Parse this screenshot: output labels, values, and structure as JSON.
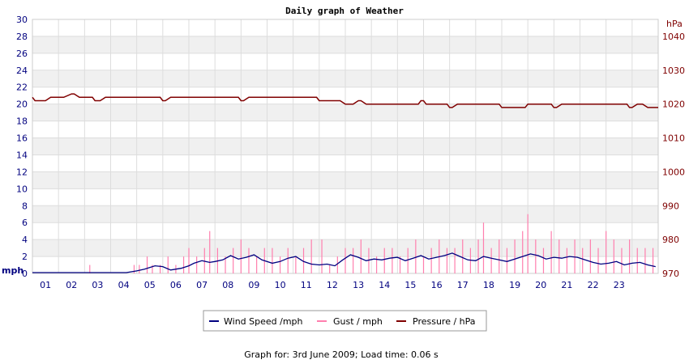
{
  "chart_data": {
    "type": "line",
    "title": "Daily graph of Weather",
    "left_axis": {
      "unit": "mph",
      "range": [
        0,
        30
      ],
      "ticks": [
        "0",
        "2",
        "4",
        "6",
        "8",
        "10",
        "12",
        "14",
        "16",
        "18",
        "20",
        "22",
        "24",
        "26",
        "28",
        "30"
      ]
    },
    "right_axis": {
      "unit": "hPa",
      "range": [
        970,
        1045
      ],
      "ticks": [
        "970",
        "980",
        "990",
        "1000",
        "1010",
        "1020",
        "1030",
        "1040"
      ]
    },
    "x_axis": {
      "range": [
        0,
        24
      ],
      "ticks": [
        "01",
        "02",
        "03",
        "04",
        "05",
        "06",
        "07",
        "08",
        "09",
        "10",
        "11",
        "12",
        "13",
        "14",
        "15",
        "16",
        "17",
        "18",
        "19",
        "20",
        "21",
        "22",
        "23"
      ]
    },
    "grid": true,
    "legend_placement": "bottom",
    "series": [
      {
        "name": "Wind Speed /mph",
        "axis": "left",
        "color": "#000080",
        "x": [
          0,
          1,
          2,
          3,
          3.6,
          4,
          4.3,
          4.7,
          5,
          5.3,
          5.7,
          6,
          6.2,
          6.5,
          6.8,
          7,
          7.3,
          7.6,
          7.9,
          8.2,
          8.5,
          8.8,
          9.2,
          9.5,
          9.8,
          10.1,
          10.4,
          10.7,
          11,
          11.3,
          11.6,
          11.9,
          12.2,
          12.5,
          12.8,
          13.1,
          13.4,
          13.7,
          14,
          14.3,
          14.6,
          14.9,
          15.2,
          15.5,
          15.8,
          16.1,
          16.4,
          16.7,
          17,
          17.3,
          17.6,
          17.9,
          18.2,
          18.5,
          18.8,
          19.1,
          19.4,
          19.7,
          20,
          20.3,
          20.6,
          20.9,
          21.2,
          21.5,
          21.8,
          22.1,
          22.4,
          22.7,
          23,
          23.3,
          23.6,
          23.9
        ],
        "values": [
          0.1,
          0.1,
          0.1,
          0.1,
          0.1,
          0.3,
          0.5,
          0.9,
          0.8,
          0.4,
          0.6,
          0.9,
          1.2,
          1.5,
          1.3,
          1.4,
          1.6,
          2.1,
          1.7,
          1.9,
          2.2,
          1.6,
          1.2,
          1.4,
          1.8,
          2.0,
          1.4,
          1.1,
          1.0,
          1.1,
          0.9,
          1.6,
          2.2,
          1.9,
          1.5,
          1.7,
          1.6,
          1.8,
          1.9,
          1.5,
          1.8,
          2.1,
          1.7,
          1.9,
          2.1,
          2.4,
          2.0,
          1.6,
          1.5,
          2.0,
          1.8,
          1.6,
          1.4,
          1.7,
          2.0,
          2.3,
          2.1,
          1.7,
          1.9,
          1.8,
          2.0,
          1.9,
          1.6,
          1.3,
          1.1,
          1.2,
          1.4,
          1.0,
          1.2,
          1.3,
          1.0,
          0.8
        ]
      },
      {
        "name": "Gust / mph",
        "axis": "left",
        "color": "#ff7fae",
        "x": [
          2.2,
          3.9,
          4.1,
          4.4,
          4.6,
          4.9,
          5.2,
          5.5,
          5.8,
          6.0,
          6.3,
          6.6,
          6.8,
          7.1,
          7.4,
          7.7,
          8.0,
          8.3,
          8.6,
          8.9,
          9.2,
          9.5,
          9.8,
          10.1,
          10.4,
          10.7,
          11.1,
          11.4,
          11.7,
          12.0,
          12.3,
          12.6,
          12.9,
          13.2,
          13.5,
          13.8,
          14.1,
          14.4,
          14.7,
          15.0,
          15.3,
          15.6,
          15.9,
          16.2,
          16.5,
          16.8,
          17.1,
          17.3,
          17.6,
          17.9,
          18.2,
          18.5,
          18.8,
          19.0,
          19.3,
          19.6,
          19.9,
          20.2,
          20.5,
          20.8,
          21.1,
          21.4,
          21.7,
          22.0,
          22.3,
          22.6,
          22.9,
          23.2,
          23.5,
          23.8
        ],
        "values": [
          1,
          1,
          1,
          2,
          1,
          1,
          2,
          1,
          2,
          3,
          2,
          3,
          5,
          3,
          2,
          3,
          4,
          3,
          2,
          3,
          3,
          2,
          3,
          2,
          3,
          4,
          4,
          1,
          2,
          3,
          3,
          4,
          3,
          2,
          3,
          3,
          2,
          3,
          4,
          2,
          3,
          4,
          3,
          3,
          4,
          3,
          4,
          6,
          3,
          4,
          3,
          4,
          5,
          7,
          4,
          3,
          5,
          4,
          3,
          4,
          3,
          4,
          3,
          5,
          4,
          3,
          4,
          3,
          3,
          3
        ]
      },
      {
        "name": "Pressure / hPa",
        "axis": "right",
        "color": "#800000",
        "x": [
          0,
          0.1,
          0.3,
          0.5,
          0.7,
          1,
          1.2,
          1.5,
          1.6,
          1.8,
          2.3,
          2.4,
          2.5,
          2.6,
          2.8,
          3,
          4,
          4.9,
          5,
          5.1,
          5.3,
          6,
          7,
          7.9,
          8,
          8.1,
          8.3,
          9,
          10,
          10.9,
          11,
          11.2,
          11.5,
          11.8,
          12,
          12.3,
          12.5,
          12.6,
          12.8,
          13,
          14,
          14.8,
          14.9,
          15,
          15.1,
          15.4,
          15.9,
          16,
          16.1,
          16.3,
          17,
          17.9,
          18,
          18.3,
          18.9,
          19,
          19.3,
          19.9,
          20,
          20.1,
          20.3,
          21,
          22,
          22.8,
          22.9,
          23,
          23.2,
          23.4,
          23.6,
          24
        ],
        "values": [
          1022,
          1021,
          1021,
          1021,
          1022,
          1022,
          1022,
          1023,
          1023,
          1022,
          1022,
          1021,
          1021,
          1021,
          1022,
          1022,
          1022,
          1022,
          1021,
          1021,
          1022,
          1022,
          1022,
          1022,
          1021,
          1021,
          1022,
          1022,
          1022,
          1022,
          1021,
          1021,
          1021,
          1021,
          1020,
          1020,
          1021,
          1021,
          1020,
          1020,
          1020,
          1020,
          1021,
          1021,
          1020,
          1020,
          1020,
          1019,
          1019,
          1020,
          1020,
          1020,
          1019,
          1019,
          1019,
          1020,
          1020,
          1020,
          1019,
          1019,
          1020,
          1020,
          1020,
          1020,
          1019,
          1019,
          1020,
          1020,
          1019,
          1019
        ]
      }
    ]
  },
  "footer": "Graph for: 3rd June 2009; Load time: 0.06 s",
  "colors": {
    "left_axis_text": "#00007f",
    "right_axis_text": "#7f0000",
    "grid_band": "#f0f0f0"
  }
}
